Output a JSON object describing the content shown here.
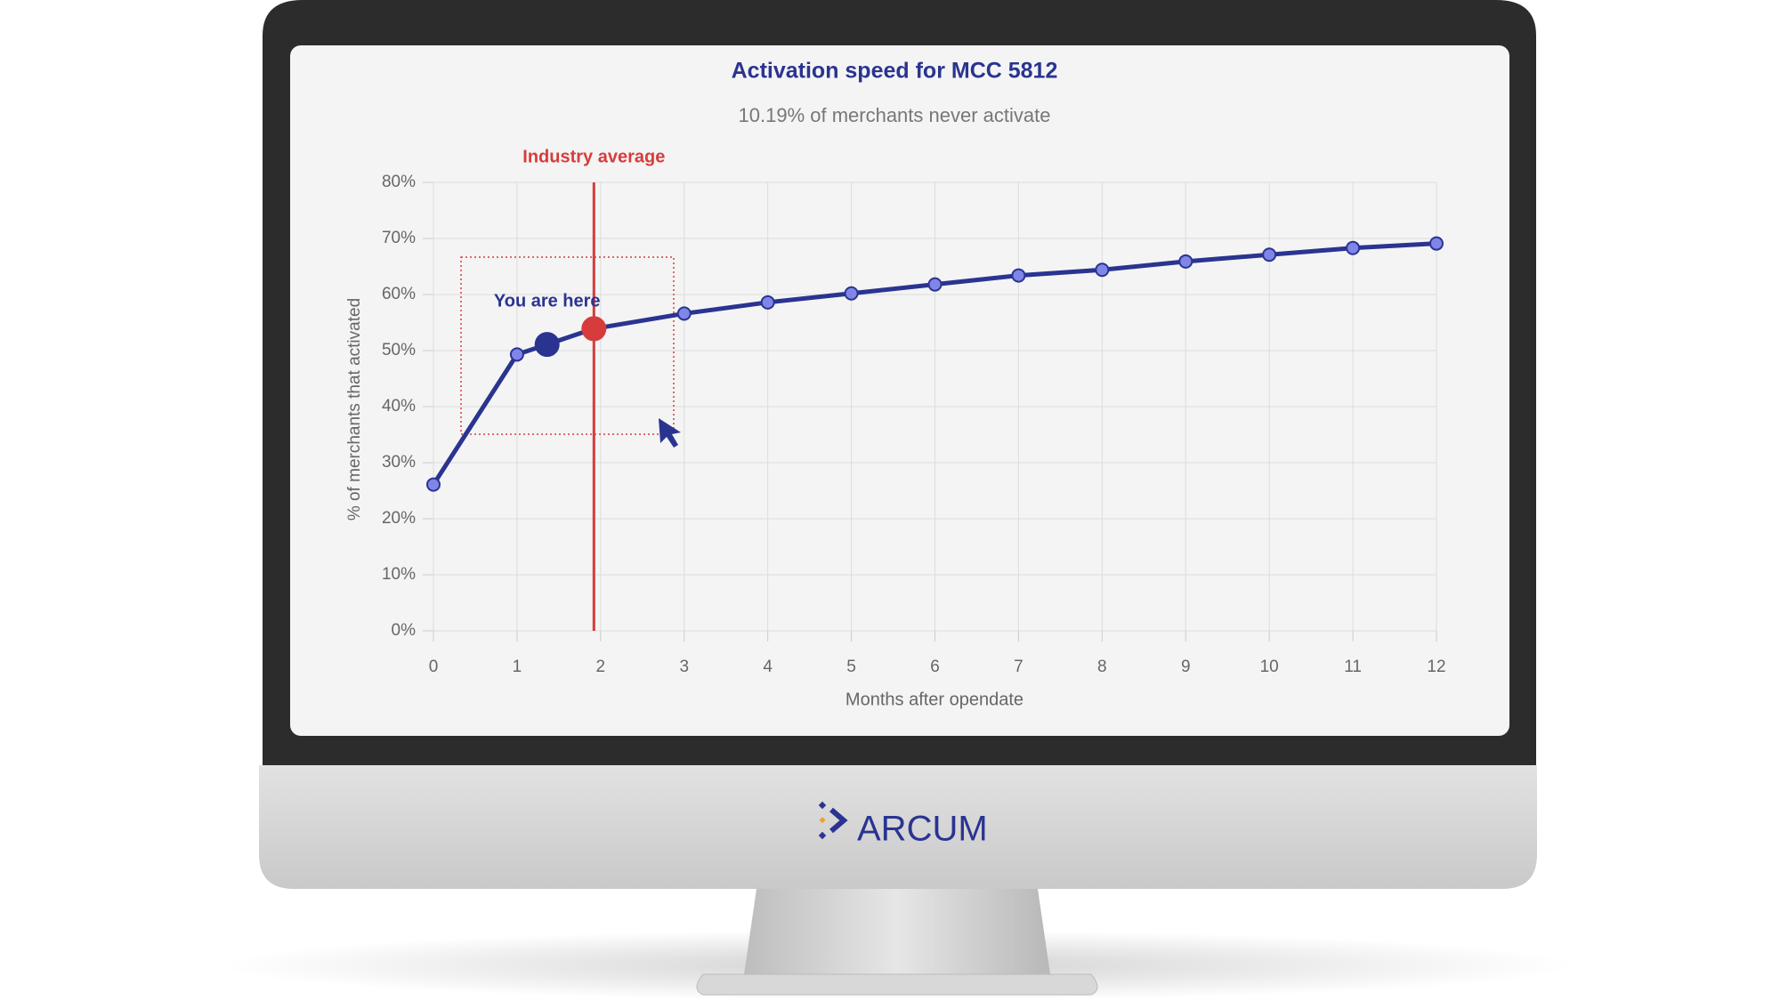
{
  "chart_data": {
    "type": "line",
    "title": "Activation speed for MCC 5812",
    "subtitle": "10.19% of merchants never activate",
    "x_label": "Months after opendate",
    "y_label": "% of merchants that activated",
    "x": [
      0,
      1,
      1.36,
      1.92,
      3,
      4,
      5,
      6,
      7,
      8,
      9,
      10,
      11,
      12
    ],
    "values": [
      26.1,
      49.3,
      51.1,
      53.9,
      56.6,
      58.6,
      60.2,
      61.8,
      63.4,
      64.4,
      65.9,
      67.1,
      68.3,
      69.1
    ],
    "color": "#2a3490",
    "marker_colors": [
      "#7f86e8",
      "#7f86e8",
      "#2a3490",
      "#d63c3c",
      "#7f86e8",
      "#7f86e8",
      "#7f86e8",
      "#7f86e8",
      "#7f86e8",
      "#7f86e8",
      "#7f86e8",
      "#7f86e8",
      "#7f86e8",
      "#7f86e8"
    ],
    "xlim": [
      0,
      12
    ],
    "xticks": [
      0,
      1,
      2,
      3,
      4,
      5,
      6,
      7,
      8,
      9,
      10,
      11,
      12
    ],
    "ylim": [
      0,
      80
    ],
    "yticks": [
      {
        "value": 0,
        "label": "0%"
      },
      {
        "value": 10,
        "label": "10%"
      },
      {
        "value": 20,
        "label": "20%"
      },
      {
        "value": 30,
        "label": "30%"
      },
      {
        "value": 40,
        "label": "40%"
      },
      {
        "value": 50,
        "label": "50%"
      },
      {
        "value": 60,
        "label": "60%"
      },
      {
        "value": 70,
        "label": "70%"
      },
      {
        "value": 80,
        "label": "80%"
      }
    ],
    "grid": true,
    "annotations": [
      {
        "text": "Industry average",
        "x": 1.92,
        "color": "#d63c3c"
      },
      {
        "text": "You are here",
        "x": 1.36,
        "color": "#2a3490"
      }
    ]
  },
  "brand": "ARCUM"
}
